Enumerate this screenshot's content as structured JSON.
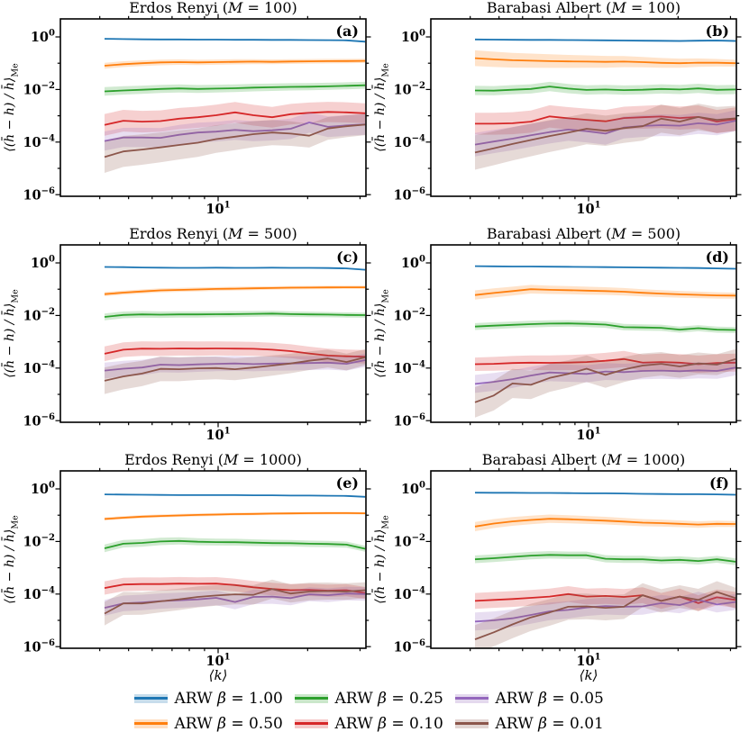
{
  "figure": {
    "background": "#ffffff",
    "text_color": "#000000"
  },
  "axes": {
    "ylabel": "⟨(h̄ − h) / h̄⟩",
    "ylabel_subscript": "Me",
    "xlabel": "⟨k⟩",
    "xscale": "log",
    "yscale": "log",
    "y_major_exponents": [
      0,
      -2,
      -4,
      -6
    ],
    "y_minor_exponents": [
      -1,
      -3,
      -5
    ],
    "x_major_ticks": [
      10
    ],
    "x_major_label_base": "10",
    "x_major_label_exp": "1",
    "x_minor_ticks": [
      4,
      5,
      6,
      7,
      8,
      9,
      20,
      30
    ]
  },
  "chart_data": {
    "type": "line",
    "xscale": "log",
    "yscale": "log",
    "xlim": [
      2.95,
      31.5
    ],
    "ylim": [
      7e-07,
      4.8
    ],
    "x": [
      4.15,
      4.8,
      5.55,
      6.4,
      7.4,
      8.55,
      9.85,
      11.4,
      13.15,
      15.2,
      17.55,
      20.25,
      23.4,
      27.0,
      31.2
    ],
    "series_meta": [
      {
        "name": "ARW β = 1.00",
        "color": "#1f77b4"
      },
      {
        "name": "ARW β = 0.50",
        "color": "#ff7f0e"
      },
      {
        "name": "ARW β = 0.25",
        "color": "#2ca02c"
      },
      {
        "name": "ARW β = 0.10",
        "color": "#d62728"
      },
      {
        "name": "ARW β = 0.05",
        "color": "#9467bd"
      },
      {
        "name": "ARW β = 0.01",
        "color": "#8c564b"
      }
    ],
    "panels": [
      {
        "letter": "(a)",
        "title": "Erdos Renyi (M = 100)",
        "values": [
          [
            0.85,
            0.83,
            0.81,
            0.8,
            0.8,
            0.79,
            0.79,
            0.78,
            0.78,
            0.77,
            0.77,
            0.76,
            0.75,
            0.74,
            0.66
          ],
          [
            0.08,
            0.092,
            0.1,
            0.107,
            0.11,
            0.107,
            0.11,
            0.113,
            0.115,
            0.113,
            0.116,
            0.118,
            0.12,
            0.121,
            0.123
          ],
          [
            0.0085,
            0.0092,
            0.0098,
            0.0105,
            0.011,
            0.0105,
            0.0108,
            0.0112,
            0.0118,
            0.0122,
            0.0126,
            0.0128,
            0.0132,
            0.0138,
            0.0145
          ],
          [
            0.00045,
            0.00065,
            0.0006,
            0.00063,
            0.00078,
            0.00088,
            0.00105,
            0.00135,
            0.00105,
            0.00088,
            0.00115,
            0.0013,
            0.0014,
            0.00135,
            0.00125
          ],
          [
            0.00011,
            0.00015,
            0.00015,
            0.000145,
            0.00019,
            0.00023,
            0.00025,
            0.00029,
            0.00026,
            0.00028,
            0.00032,
            0.00056,
            0.00038,
            0.00043,
            0.00047
          ],
          [
            2.7e-05,
            4.4e-05,
            5.2e-05,
            6.3e-05,
            7.8e-05,
            9.5e-05,
            0.00013,
            0.00016,
            0.0002,
            0.00023,
            0.00021,
            0.000175,
            0.00033,
            0.0004,
            0.00046
          ]
        ],
        "band_factors": [
          [
            1.07,
            1.07
          ],
          [
            1.3,
            1.2
          ],
          [
            1.45,
            1.35
          ],
          [
            2.6,
            2.4
          ],
          [
            2.3,
            2.5
          ],
          [
            4.0,
            2.5
          ]
        ]
      },
      {
        "letter": "(b)",
        "title": "Barabasi Albert (M = 100)",
        "values": [
          [
            0.8,
            0.79,
            0.78,
            0.77,
            0.77,
            0.76,
            0.75,
            0.74,
            0.73,
            0.72,
            0.71,
            0.7,
            0.72,
            0.73,
            0.7
          ],
          [
            0.155,
            0.14,
            0.13,
            0.125,
            0.12,
            0.117,
            0.115,
            0.113,
            0.115,
            0.11,
            0.103,
            0.1,
            0.105,
            0.104,
            0.1
          ],
          [
            0.0092,
            0.009,
            0.0098,
            0.0105,
            0.013,
            0.0108,
            0.0096,
            0.01,
            0.0095,
            0.0098,
            0.0105,
            0.01,
            0.011,
            0.0097,
            0.01
          ],
          [
            0.0005,
            0.0005,
            0.00052,
            0.0006,
            0.00095,
            0.0008,
            0.0007,
            0.00062,
            0.00082,
            0.00088,
            0.00094,
            0.00082,
            0.0009,
            0.0006,
            0.00075
          ],
          [
            8e-05,
            0.000105,
            0.000135,
            0.00018,
            0.00024,
            0.0003,
            0.00026,
            0.00021,
            0.00036,
            0.00041,
            0.00044,
            0.00042,
            0.00052,
            0.00046,
            0.00065
          ],
          [
            4e-05,
            5.8e-05,
            8.5e-05,
            0.00012,
            0.00017,
            0.00023,
            0.00032,
            0.00027,
            0.00034,
            0.0004,
            0.00078,
            0.0006,
            0.0009,
            0.0007,
            0.0008
          ]
        ],
        "band_factors": [
          [
            1.07,
            1.1
          ],
          [
            2.0,
            1.35
          ],
          [
            1.5,
            1.5
          ],
          [
            2.6,
            2.8
          ],
          [
            2.8,
            2.5
          ],
          [
            4.5,
            3.0
          ]
        ]
      },
      {
        "letter": "(c)",
        "title": "Erdos Renyi (M = 500)",
        "values": [
          [
            0.7,
            0.69,
            0.67,
            0.66,
            0.65,
            0.65,
            0.66,
            0.65,
            0.65,
            0.66,
            0.65,
            0.65,
            0.64,
            0.62,
            0.55
          ],
          [
            0.065,
            0.074,
            0.082,
            0.09,
            0.094,
            0.098,
            0.102,
            0.105,
            0.108,
            0.111,
            0.114,
            0.115,
            0.117,
            0.118,
            0.118
          ],
          [
            0.0088,
            0.0105,
            0.011,
            0.0107,
            0.011,
            0.011,
            0.0112,
            0.0113,
            0.0115,
            0.0118,
            0.0113,
            0.011,
            0.0108,
            0.0105,
            0.0103
          ],
          [
            0.00035,
            0.0005,
            0.00055,
            0.00054,
            0.00056,
            0.00055,
            0.00056,
            0.00055,
            0.00054,
            0.0005,
            0.00044,
            0.00036,
            0.0003,
            0.00028,
            0.00027
          ],
          [
            8e-05,
            9.5e-05,
            0.000105,
            0.000135,
            0.00013,
            0.000138,
            0.000145,
            0.00015,
            0.000142,
            0.000148,
            0.00015,
            0.000155,
            0.00016,
            0.000145,
            0.0002
          ],
          [
            3.3e-05,
            4.8e-05,
            6.2e-05,
            9.3e-05,
            9e-05,
            9.8e-05,
            0.0001,
            9e-05,
            0.000105,
            0.000125,
            0.00015,
            0.00019,
            0.00023,
            0.00017,
            0.00026
          ]
        ],
        "band_factors": [
          [
            1.05,
            1.07
          ],
          [
            1.2,
            1.15
          ],
          [
            1.35,
            1.25
          ],
          [
            1.9,
            1.8
          ],
          [
            2.0,
            1.8
          ],
          [
            3.2,
            2.0
          ]
        ]
      },
      {
        "letter": "(d)",
        "title": "Barabasi Albert (M = 500)",
        "values": [
          [
            0.75,
            0.74,
            0.73,
            0.73,
            0.72,
            0.71,
            0.7,
            0.69,
            0.68,
            0.67,
            0.66,
            0.65,
            0.64,
            0.62,
            0.6
          ],
          [
            0.06,
            0.072,
            0.085,
            0.1,
            0.095,
            0.092,
            0.088,
            0.085,
            0.08,
            0.073,
            0.068,
            0.064,
            0.061,
            0.058,
            0.057
          ],
          [
            0.0038,
            0.0041,
            0.0044,
            0.0047,
            0.0049,
            0.005,
            0.0048,
            0.0045,
            0.0036,
            0.0035,
            0.0034,
            0.0029,
            0.0033,
            0.0029,
            0.0028
          ],
          [
            0.00014,
            0.000145,
            0.000155,
            0.00016,
            0.000158,
            0.000162,
            0.00017,
            0.00019,
            0.00022,
            0.00016,
            0.00017,
            0.00016,
            0.00014,
            0.000155,
            0.00016
          ],
          [
            2.5e-05,
            3e-05,
            3.8e-05,
            5.2e-05,
            6.8e-05,
            6.4e-05,
            6e-05,
            7.4e-05,
            7e-05,
            7.8e-05,
            8e-05,
            7.6e-05,
            8.2e-05,
            7.8e-05,
            0.000105
          ],
          [
            5e-06,
            9e-06,
            2.6e-05,
            2.3e-05,
            4.2e-05,
            6e-05,
            9.5e-05,
            5.5e-05,
            8.8e-05,
            0.000125,
            0.000145,
            0.000115,
            0.00015,
            0.000135,
            0.00022
          ]
        ],
        "band_factors": [
          [
            1.06,
            1.08
          ],
          [
            1.5,
            1.3
          ],
          [
            1.35,
            1.3
          ],
          [
            1.8,
            2.2
          ],
          [
            2.2,
            2.0
          ],
          [
            3.8,
            2.4
          ]
        ]
      },
      {
        "letter": "(e)",
        "title": "Erdos Renyi (M = 1000)",
        "values": [
          [
            0.62,
            0.61,
            0.6,
            0.59,
            0.58,
            0.58,
            0.58,
            0.58,
            0.57,
            0.57,
            0.56,
            0.56,
            0.55,
            0.54,
            0.5
          ],
          [
            0.072,
            0.08,
            0.088,
            0.093,
            0.098,
            0.102,
            0.106,
            0.11,
            0.112,
            0.115,
            0.117,
            0.119,
            0.12,
            0.12,
            0.118
          ],
          [
            0.0055,
            0.0082,
            0.0088,
            0.01,
            0.0105,
            0.0098,
            0.0095,
            0.0094,
            0.009,
            0.0087,
            0.0086,
            0.0082,
            0.008,
            0.0076,
            0.0053
          ],
          [
            0.00017,
            0.00023,
            0.00024,
            0.00024,
            0.00025,
            0.000245,
            0.00025,
            0.00022,
            0.00018,
            0.000155,
            0.00014,
            0.000145,
            0.000135,
            0.00014,
            0.00011
          ],
          [
            3e-05,
            4.4e-05,
            4.8e-05,
            5.4e-05,
            5.8e-05,
            6.3e-05,
            7.2e-05,
            5e-05,
            7.8e-05,
            8e-05,
            7e-05,
            9.8e-05,
            9e-05,
            0.000105,
            0.0001
          ],
          [
            1.8e-05,
            4.4e-05,
            4.4e-05,
            5.3e-05,
            6.3e-05,
            7.8e-05,
            8.8e-05,
            9.8e-05,
            9.3e-05,
            0.000155,
            0.000105,
            0.000125,
            0.00013,
            0.000125,
            0.00014
          ]
        ],
        "band_factors": [
          [
            1.05,
            1.06
          ],
          [
            1.15,
            1.12
          ],
          [
            1.4,
            1.3
          ],
          [
            1.8,
            1.7
          ],
          [
            2.0,
            1.8
          ],
          [
            2.8,
            2.0
          ]
        ]
      },
      {
        "letter": "(f)",
        "title": "Barabasi Albert (M = 1000)",
        "values": [
          [
            0.72,
            0.71,
            0.71,
            0.7,
            0.7,
            0.69,
            0.68,
            0.68,
            0.67,
            0.65,
            0.64,
            0.63,
            0.63,
            0.62,
            0.6
          ],
          [
            0.037,
            0.048,
            0.058,
            0.066,
            0.073,
            0.07,
            0.066,
            0.062,
            0.057,
            0.052,
            0.05,
            0.047,
            0.044,
            0.047,
            0.046
          ],
          [
            0.0021,
            0.0023,
            0.0026,
            0.0029,
            0.0031,
            0.003,
            0.003,
            0.0022,
            0.0021,
            0.0021,
            0.0019,
            0.002,
            0.0018,
            0.0021,
            0.0017
          ],
          [
            5.5e-05,
            6e-05,
            6.5e-05,
            7.2e-05,
            8e-05,
            0.0001,
            8e-05,
            8.5e-05,
            7.8e-05,
            9e-05,
            5.5e-05,
            8e-05,
            4.5e-05,
            7.5e-05,
            6e-05
          ],
          [
            9e-06,
            1e-05,
            1.2e-05,
            1.6e-05,
            2.2e-05,
            2.5e-05,
            3.1e-05,
            3.5e-05,
            3.3e-05,
            3.4e-05,
            4.5e-05,
            3.8e-05,
            6e-05,
            4e-05,
            5e-05
          ],
          [
            1.9e-06,
            3.5e-06,
            7e-06,
            1.3e-05,
            2e-05,
            3.3e-05,
            3.4e-05,
            3e-05,
            3.3e-05,
            9e-05,
            5.5e-05,
            8e-05,
            6e-05,
            0.00012,
            7e-05
          ]
        ],
        "band_factors": [
          [
            1.06,
            1.08
          ],
          [
            1.5,
            1.3
          ],
          [
            1.4,
            1.35
          ],
          [
            2.0,
            2.0
          ],
          [
            2.2,
            2.0
          ],
          [
            3.5,
            2.5
          ]
        ]
      }
    ]
  },
  "legend": {
    "items": [
      {
        "label": "ARW β = 1.00",
        "color": "#1f77b4"
      },
      {
        "label": "ARW β = 0.25",
        "color": "#2ca02c"
      },
      {
        "label": "ARW β = 0.05",
        "color": "#9467bd"
      },
      {
        "label": "ARW β = 0.50",
        "color": "#ff7f0e"
      },
      {
        "label": "ARW β = 0.10",
        "color": "#d62728"
      },
      {
        "label": "ARW β = 0.01",
        "color": "#8c564b"
      }
    ]
  }
}
